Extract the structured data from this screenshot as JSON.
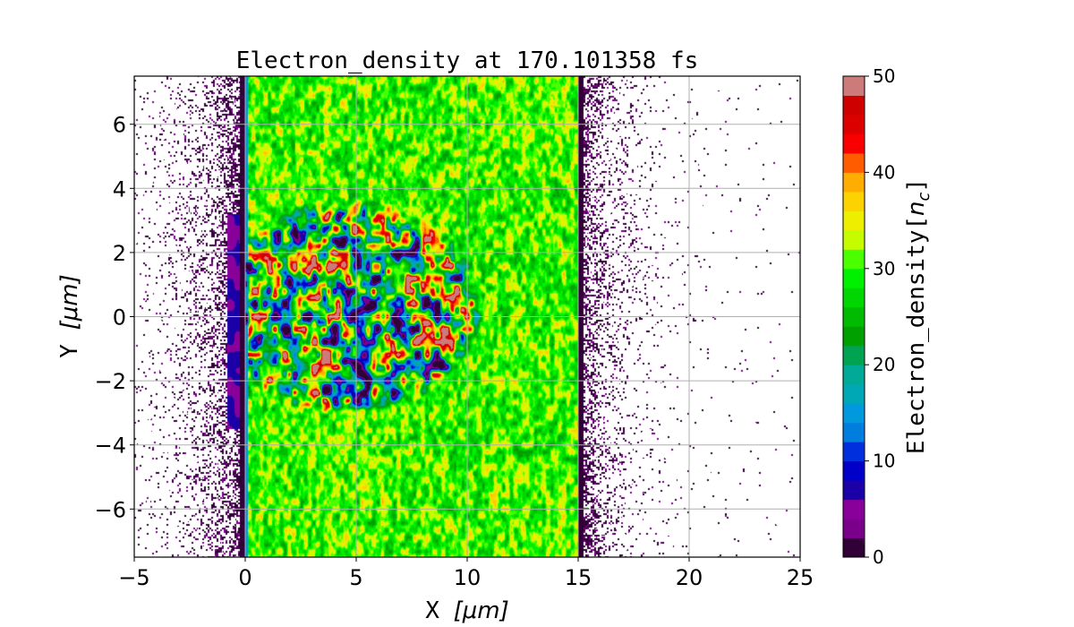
{
  "chart_data": {
    "type": "heatmap",
    "title": "Electron_density at 170.101358 fs",
    "xlabel": "X [μm]",
    "xlabel_parts": {
      "text": "X ",
      "math": "[μm]"
    },
    "ylabel": "Y [μm]",
    "ylabel_parts": {
      "text": "Y ",
      "math": "[μm]"
    },
    "xlim": [
      -5,
      25
    ],
    "ylim": [
      -7.5,
      7.5
    ],
    "xticks": [
      -5,
      0,
      5,
      10,
      15,
      20,
      25
    ],
    "xtick_labels": [
      "−5",
      "0",
      "5",
      "10",
      "15",
      "20",
      "25"
    ],
    "yticks": [
      -6,
      -4,
      -2,
      0,
      2,
      4,
      6
    ],
    "ytick_labels": [
      "−6",
      "−4",
      "−2",
      "0",
      "2",
      "4",
      "6"
    ],
    "grid": true,
    "colormap": "nipy_spectral",
    "colorbar": {
      "label": "Electron_density[n_c]",
      "label_text": "Electron_density",
      "label_math": "[n_c]",
      "range": [
        0,
        50
      ],
      "ticks": [
        0,
        10,
        20,
        30,
        40,
        50
      ],
      "tick_labels": [
        "0",
        "10",
        "20",
        "30",
        "40",
        "50"
      ],
      "levels": 25,
      "position": "right"
    },
    "foil": {
      "x_range": [
        0,
        15
      ],
      "typical_density": 30
    },
    "cavity": {
      "x_range": [
        0,
        11
      ],
      "y_range": [
        -3,
        4
      ],
      "density_range": [
        3,
        50
      ]
    },
    "grid_color": "#b0b0b0"
  }
}
